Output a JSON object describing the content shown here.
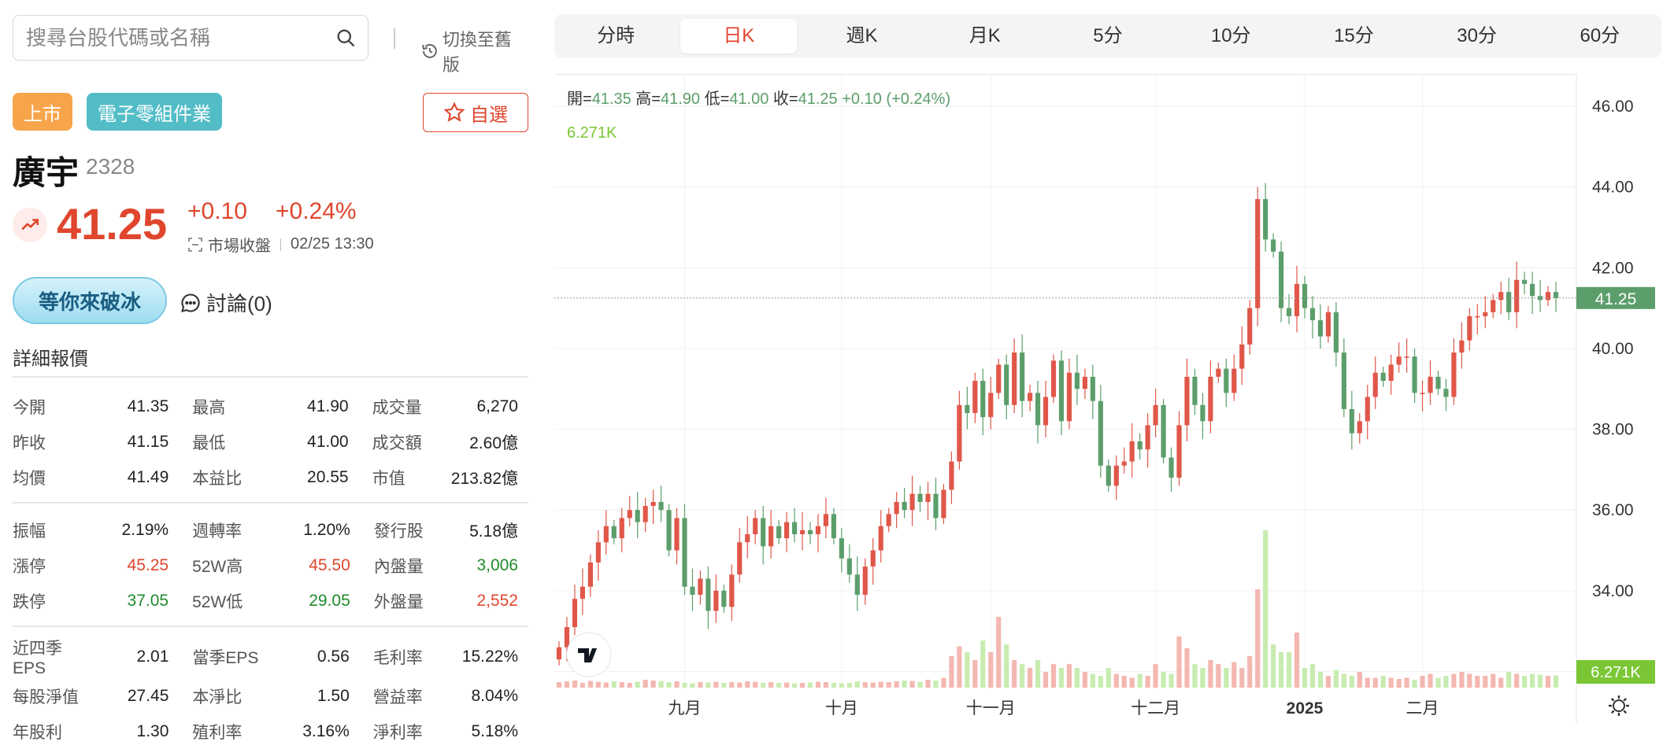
{
  "search": {
    "placeholder": "搜尋台股代碼或名稱",
    "icon": "search-icon"
  },
  "switch_label": "切換至舊版",
  "badges": {
    "listed": "上市",
    "industry": "電子零組件業"
  },
  "watchlist_label": "自選",
  "stock": {
    "name": "廣宇",
    "code": "2328",
    "price": "41.25",
    "change": "+0.10",
    "change_pct": "+0.24%",
    "status": "市場收盤",
    "time": "02/25 13:30"
  },
  "promo": "等你來破冰",
  "discuss": "討論(0)",
  "detail_title": "詳細報價",
  "quotes": [
    [
      [
        "今開",
        "41.35",
        ""
      ],
      [
        "最高",
        "41.90",
        ""
      ],
      [
        "成交量",
        "6,270",
        ""
      ]
    ],
    [
      [
        "昨收",
        "41.15",
        ""
      ],
      [
        "最低",
        "41.00",
        ""
      ],
      [
        "成交額",
        "2.60億",
        ""
      ]
    ],
    [
      [
        "均價",
        "41.49",
        ""
      ],
      [
        "本益比",
        "20.55",
        ""
      ],
      [
        "市值",
        "213.82億",
        ""
      ]
    ],
    [
      [
        "振幅",
        "2.19%",
        ""
      ],
      [
        "週轉率",
        "1.20%",
        ""
      ],
      [
        "發行股",
        "5.18億",
        ""
      ]
    ],
    [
      [
        "漲停",
        "45.25",
        "up"
      ],
      [
        "52W高",
        "45.50",
        "up"
      ],
      [
        "內盤量",
        "3,006",
        "down"
      ]
    ],
    [
      [
        "跌停",
        "37.05",
        "down"
      ],
      [
        "52W低",
        "29.05",
        "down"
      ],
      [
        "外盤量",
        "2,552",
        "up"
      ]
    ],
    [
      [
        "近四季EPS",
        "2.01",
        ""
      ],
      [
        "當季EPS",
        "0.56",
        ""
      ],
      [
        "毛利率",
        "15.22%",
        ""
      ]
    ],
    [
      [
        "每股淨值",
        "27.45",
        ""
      ],
      [
        "本淨比",
        "1.50",
        ""
      ],
      [
        "營益率",
        "8.04%",
        ""
      ]
    ],
    [
      [
        "年股利",
        "1.30",
        ""
      ],
      [
        "殖利率",
        "3.16%",
        ""
      ],
      [
        "淨利率",
        "5.18%",
        ""
      ]
    ]
  ],
  "tabs": [
    "分時",
    "日K",
    "週K",
    "月K",
    "5分",
    "10分",
    "15分",
    "30分",
    "60分"
  ],
  "active_tab": 1,
  "colors": {
    "up": "#e0462d",
    "down": "#1f8a2c",
    "candle_up": "#e0574a",
    "candle_down": "#5c9e6b",
    "vol_up": "#f4b7b1",
    "vol_down": "#c8ecb0"
  },
  "chart_data": {
    "type": "candlestick",
    "ohlc_label": {
      "open_label": "開",
      "open": "41.35",
      "high_label": "高",
      "high": "41.90",
      "low_label": "低",
      "low": "41.00",
      "close_label": "收",
      "close": "41.25",
      "change": "+0.10 (+0.24%)"
    },
    "volume_label": "6.271K",
    "last_price_tag": "41.25",
    "last_volume_tag": "6.271K",
    "y_ticks": [
      "46.00",
      "44.00",
      "42.00",
      "40.00",
      "38.00",
      "36.00",
      "34.00",
      "32.00"
    ],
    "ylim": [
      31.6,
      46.8
    ],
    "x_ticks": [
      {
        "label": "九月",
        "index": 16
      },
      {
        "label": "十月",
        "index": 36
      },
      {
        "label": "十一月",
        "index": 55
      },
      {
        "label": "十二月",
        "index": 76
      },
      {
        "label": "2025",
        "index": 95,
        "bold": true
      },
      {
        "label": "二月",
        "index": 110
      }
    ],
    "closes": [
      32.6,
      33.1,
      33.8,
      34.1,
      34.7,
      35.2,
      35.6,
      35.3,
      35.8,
      36.0,
      35.7,
      36.1,
      36.2,
      36.0,
      35.0,
      35.8,
      34.1,
      33.9,
      34.3,
      33.5,
      34.0,
      33.6,
      34.4,
      35.2,
      35.4,
      35.8,
      35.1,
      35.6,
      35.3,
      35.7,
      35.4,
      35.5,
      35.4,
      35.6,
      35.9,
      35.3,
      34.8,
      34.4,
      33.9,
      34.6,
      35.0,
      35.6,
      35.9,
      36.2,
      36.0,
      36.4,
      36.2,
      36.4,
      35.8,
      36.5,
      37.2,
      38.6,
      38.4,
      39.2,
      38.3,
      38.9,
      39.6,
      38.6,
      39.9,
      38.7,
      38.9,
      38.1,
      38.8,
      39.7,
      38.2,
      39.4,
      39.0,
      39.3,
      38.7,
      37.1,
      36.6,
      37.1,
      37.2,
      37.7,
      37.5,
      38.1,
      38.6,
      37.3,
      36.8,
      38.1,
      39.3,
      38.6,
      38.2,
      39.3,
      39.5,
      38.9,
      39.5,
      40.1,
      41.0,
      43.7,
      42.7,
      42.4,
      41.0,
      40.8,
      41.6,
      41.0,
      40.7,
      40.3,
      40.9,
      39.9,
      38.5,
      37.9,
      38.2,
      38.8,
      39.4,
      39.2,
      39.6,
      39.8,
      39.8,
      38.9,
      38.9,
      39.3,
      39.0,
      38.8,
      39.9,
      40.2,
      40.8,
      40.8,
      40.9,
      41.2,
      41.4,
      40.9,
      41.7,
      41.6,
      41.3,
      41.2,
      41.4,
      41.25
    ],
    "volumes": [
      140,
      160,
      180,
      120,
      170,
      150,
      130,
      160,
      140,
      120,
      150,
      200,
      180,
      170,
      140,
      160,
      120,
      110,
      140,
      130,
      150,
      120,
      140,
      130,
      160,
      150,
      120,
      140,
      120,
      130,
      110,
      120,
      130,
      150,
      140,
      120,
      110,
      120,
      160,
      140,
      130,
      150,
      140,
      160,
      180,
      170,
      150,
      200,
      180,
      250,
      800,
      1050,
      900,
      700,
      1200,
      900,
      1800,
      1100,
      700,
      600,
      500,
      700,
      400,
      600,
      500,
      600,
      500,
      400,
      350,
      300,
      500,
      350,
      300,
      250,
      350,
      300,
      600,
      400,
      350,
      1300,
      1000,
      600,
      500,
      700,
      600,
      500,
      650,
      500,
      800,
      2500,
      4000,
      1100,
      900,
      900,
      1400,
      500,
      600,
      400,
      300,
      450,
      350,
      300,
      400,
      250,
      250,
      300,
      250,
      220,
      250,
      200,
      300,
      350,
      250,
      300,
      350,
      400,
      350,
      300,
      300,
      350,
      250,
      400,
      350,
      300,
      350,
      330,
      300,
      310
    ]
  }
}
